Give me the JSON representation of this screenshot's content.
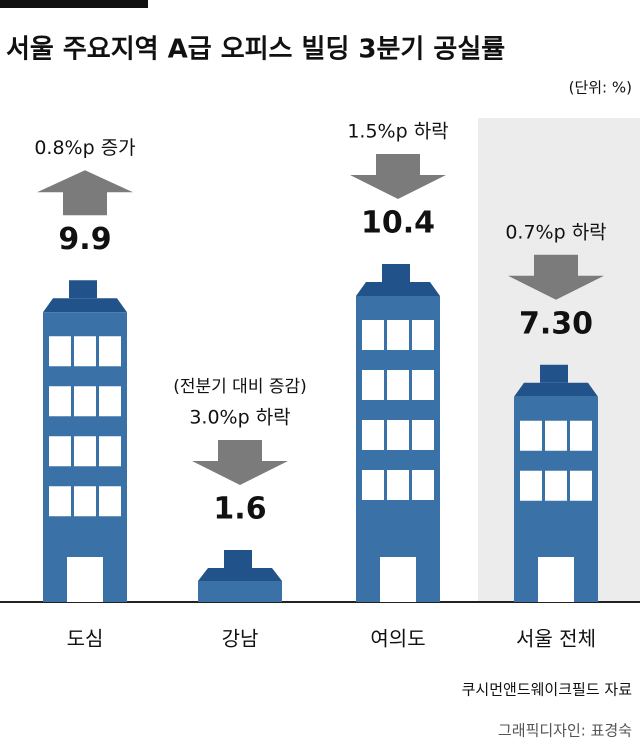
{
  "chart_data": {
    "type": "bar",
    "title": "서울 주요지역 A급 오피스 빌딩 3분기 공실률",
    "unit": "(단위: %)",
    "categories": [
      "도심",
      "강남",
      "여의도",
      "서울 전체"
    ],
    "values": [
      9.9,
      1.6,
      10.4,
      7.3
    ],
    "value_labels": [
      "9.9",
      "1.6",
      "10.4",
      "7.30"
    ],
    "color": "#3a72a8",
    "roof_color": "#22528a",
    "annotation": "(전분기 대비 증감)",
    "changes": {
      "values": [
        0.8,
        -3.0,
        -1.5,
        -0.7
      ],
      "value_labels": [
        "0.8%p 증가",
        "3.0%p 하락",
        "1.5%p 하락",
        "0.7%p 하락"
      ],
      "color": "#7b7b7b"
    },
    "highlight_color": "#ececec",
    "source": "쿠시먼앤드웨이크필드 자료",
    "credit": "그래픽디자인: 표경숙"
  }
}
